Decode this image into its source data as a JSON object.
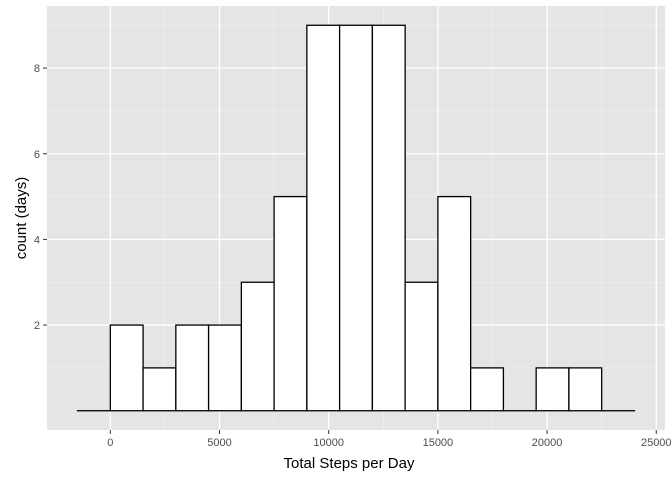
{
  "chart_data": {
    "type": "bar",
    "subtype": "histogram",
    "title": "",
    "xlabel": "Total Steps per Day",
    "ylabel": "count (days)",
    "xlim": [
      -2900,
      25400
    ],
    "ylim": [
      -0.45,
      9.45
    ],
    "x_ticks": [
      0,
      5000,
      10000,
      15000,
      20000,
      25000
    ],
    "x_tick_labels": [
      "0",
      "5000",
      "10000",
      "15000",
      "20000",
      "25000"
    ],
    "y_ticks": [
      2,
      4,
      6,
      8
    ],
    "y_tick_labels": [
      "2",
      "4",
      "6",
      "8"
    ],
    "grid": true,
    "legend": "none",
    "bins": [
      {
        "x0": -1500,
        "x1": 0,
        "count": 0
      },
      {
        "x0": 0,
        "x1": 1500,
        "count": 2
      },
      {
        "x0": 1500,
        "x1": 3000,
        "count": 1
      },
      {
        "x0": 3000,
        "x1": 4500,
        "count": 2
      },
      {
        "x0": 4500,
        "x1": 6000,
        "count": 2
      },
      {
        "x0": 6000,
        "x1": 7500,
        "count": 3
      },
      {
        "x0": 7500,
        "x1": 9000,
        "count": 5
      },
      {
        "x0": 9000,
        "x1": 10500,
        "count": 9
      },
      {
        "x0": 10500,
        "x1": 12000,
        "count": 9
      },
      {
        "x0": 12000,
        "x1": 13500,
        "count": 9
      },
      {
        "x0": 13500,
        "x1": 15000,
        "count": 3
      },
      {
        "x0": 15000,
        "x1": 16500,
        "count": 5
      },
      {
        "x0": 16500,
        "x1": 18000,
        "count": 1
      },
      {
        "x0": 18000,
        "x1": 19500,
        "count": 0
      },
      {
        "x0": 19500,
        "x1": 21000,
        "count": 1
      },
      {
        "x0": 21000,
        "x1": 22500,
        "count": 1
      },
      {
        "x0": 22500,
        "x1": 24000,
        "count": 0
      }
    ],
    "colors": {
      "panel": "#e5e5e5",
      "grid_major": "#ffffff",
      "grid_minor": "#f2f2f2",
      "bar_fill": "#ffffff",
      "bar_stroke": "#000000",
      "tick_text": "#4d4d4d"
    }
  }
}
